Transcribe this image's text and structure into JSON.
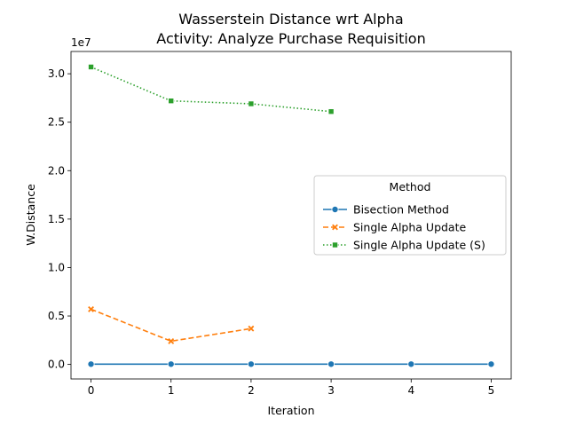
{
  "chart_data": {
    "type": "line",
    "title": "Wasserstein Distance wrt Alpha",
    "subtitle": "Activity: Analyze Purchase Requisition",
    "xlabel": "Iteration",
    "ylabel": "W.Distance",
    "y_offset_label": "1e7",
    "y_scale": 10000000,
    "xlim": [
      -0.25,
      5.25
    ],
    "ylim": [
      -1500000,
      32300000
    ],
    "x_ticks": [
      0,
      1,
      2,
      3,
      4,
      5
    ],
    "y_ticks": [
      0.0,
      0.5,
      1.0,
      1.5,
      2.0,
      2.5,
      3.0
    ],
    "y_tick_labels": [
      "0.0",
      "0.5",
      "1.0",
      "1.5",
      "2.0",
      "2.5",
      "3.0"
    ],
    "grid": false,
    "legend": {
      "title": "Method",
      "placement": "center-right"
    },
    "series": [
      {
        "name": "Bisection Method",
        "color": "#1f77b4",
        "line_style": "solid",
        "marker": "circle",
        "x": [
          0,
          1,
          2,
          3,
          4,
          5
        ],
        "y": [
          30000,
          30000,
          30000,
          30000,
          30000,
          30000
        ]
      },
      {
        "name": "Single Alpha Update",
        "color": "#ff7f0e",
        "line_style": "dashed",
        "marker": "x",
        "x": [
          0,
          1,
          2
        ],
        "y": [
          5700000,
          2400000,
          3700000
        ]
      },
      {
        "name": "Single Alpha Update (S)",
        "color": "#2ca02c",
        "line_style": "dotted",
        "marker": "square",
        "x": [
          0,
          1,
          2,
          3
        ],
        "y": [
          30700000,
          27200000,
          26900000,
          26100000
        ]
      }
    ]
  }
}
